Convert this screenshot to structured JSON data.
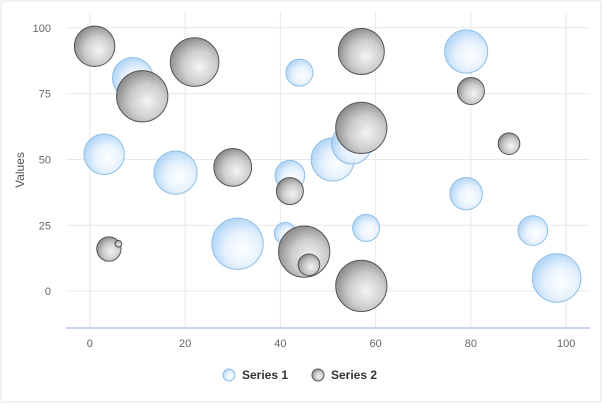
{
  "chart_data": {
    "type": "bubble",
    "title": "",
    "xlabel": "",
    "ylabel": "Values",
    "xlim": [
      -5,
      105
    ],
    "ylim": [
      -14,
      106
    ],
    "x_ticks": [
      0,
      20,
      40,
      60,
      80,
      100
    ],
    "y_ticks": [
      0,
      25,
      50,
      75,
      100
    ],
    "grid": true,
    "legend": "bottom-center",
    "series": [
      {
        "name": "Series 1",
        "color": "#cfe6fb",
        "stroke": "#8fbfe8",
        "points": [
          {
            "x": 3,
            "y": 52,
            "r": 1.5
          },
          {
            "x": 9,
            "y": 81,
            "r": 1.5
          },
          {
            "x": 18,
            "y": 45,
            "r": 1.6
          },
          {
            "x": 31,
            "y": 18,
            "r": 1.9
          },
          {
            "x": 41,
            "y": 22,
            "r": 0.8
          },
          {
            "x": 42,
            "y": 44,
            "r": 1.1
          },
          {
            "x": 44,
            "y": 83,
            "r": 1.0
          },
          {
            "x": 51,
            "y": 50,
            "r": 1.6
          },
          {
            "x": 55,
            "y": 56,
            "r": 1.5
          },
          {
            "x": 58,
            "y": 24,
            "r": 1.0
          },
          {
            "x": 79,
            "y": 37,
            "r": 1.2
          },
          {
            "x": 79,
            "y": 91,
            "r": 1.6
          },
          {
            "x": 93,
            "y": 23,
            "r": 1.1
          },
          {
            "x": 98,
            "y": 5,
            "r": 1.8
          }
        ]
      },
      {
        "name": "Series 2",
        "color": "#c4c4c4",
        "stroke": "#555555",
        "points": [
          {
            "x": 1,
            "y": 93,
            "r": 1.5
          },
          {
            "x": 4,
            "y": 16,
            "r": 0.9
          },
          {
            "x": 6,
            "y": 18,
            "r": 0.25
          },
          {
            "x": 11,
            "y": 74,
            "r": 1.9
          },
          {
            "x": 22,
            "y": 87,
            "r": 1.8
          },
          {
            "x": 30,
            "y": 47,
            "r": 1.4
          },
          {
            "x": 42,
            "y": 38,
            "r": 1.0
          },
          {
            "x": 45,
            "y": 15,
            "r": 1.9
          },
          {
            "x": 46,
            "y": 10,
            "r": 0.8
          },
          {
            "x": 57,
            "y": 91,
            "r": 1.7
          },
          {
            "x": 57,
            "y": 62,
            "r": 1.9
          },
          {
            "x": 57,
            "y": 2,
            "r": 1.9
          },
          {
            "x": 80,
            "y": 76,
            "r": 1.0
          },
          {
            "x": 88,
            "y": 56,
            "r": 0.8
          }
        ]
      }
    ]
  }
}
